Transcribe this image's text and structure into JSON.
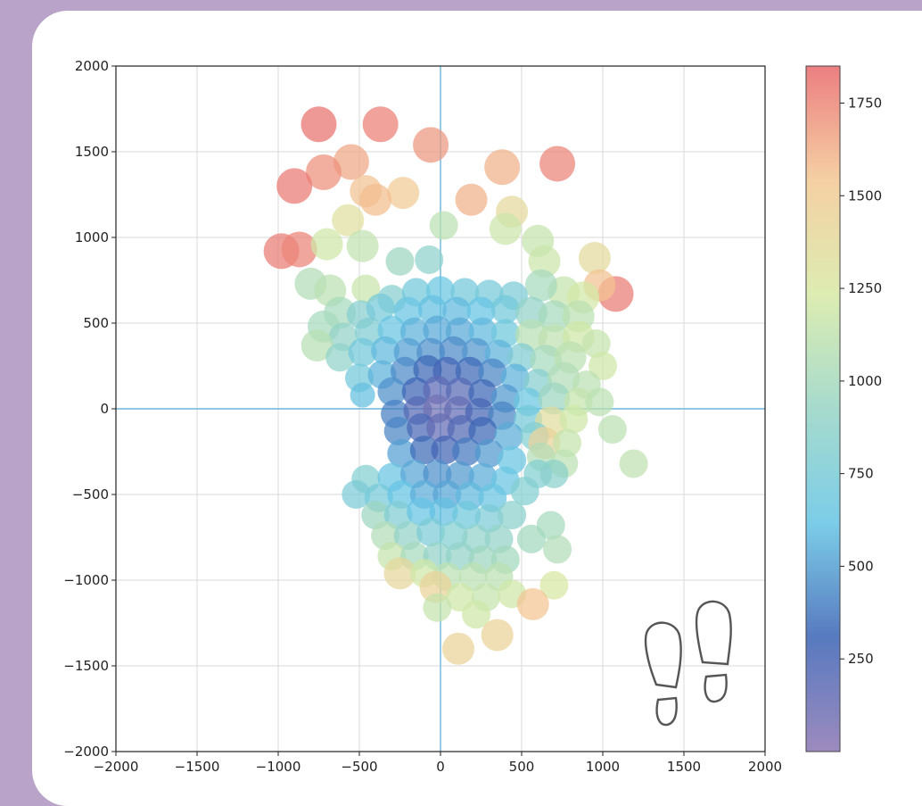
{
  "chart_data": {
    "type": "scatter",
    "title": "",
    "xlabel": "",
    "ylabel": "",
    "xlim": [
      -2000,
      2000
    ],
    "ylim": [
      -2000,
      2000
    ],
    "xticks": [
      -2000,
      -1500,
      -1000,
      -500,
      0,
      500,
      1000,
      1500,
      2000
    ],
    "yticks": [
      -2000,
      -1500,
      -1000,
      -500,
      0,
      500,
      1000,
      1500,
      2000
    ],
    "xtick_labels": [
      "−2000",
      "−1500",
      "−1000",
      "−500",
      "0",
      "500",
      "1000",
      "1500",
      "2000"
    ],
    "ytick_labels": [
      "−2000",
      "−1500",
      "−1000",
      "−500",
      "0",
      "500",
      "1000",
      "1500",
      "2000"
    ],
    "grid": true,
    "reference_lines": {
      "x": 0,
      "y": 0,
      "color": "#6bb6dc"
    },
    "colorbar": {
      "range": [
        0,
        1850
      ],
      "ticks": [
        250,
        500,
        750,
        1000,
        1250,
        1500,
        1750
      ],
      "tick_labels": [
        "250",
        "500",
        "750",
        "1000",
        "1250",
        "1500",
        "1750"
      ],
      "colormap": "Spectral_r",
      "colors": [
        "#8b76b3",
        "#3a62b4",
        "#64c4e4",
        "#97d4c4",
        "#d6e9a4",
        "#f3c893",
        "#e8686b"
      ]
    },
    "points": [
      {
        "x": -750,
        "y": 1660,
        "v": 1820,
        "size": 1
      },
      {
        "x": -370,
        "y": 1660,
        "v": 1780,
        "size": 1
      },
      {
        "x": -60,
        "y": 1540,
        "v": 1700,
        "size": 1
      },
      {
        "x": 720,
        "y": 1430,
        "v": 1760,
        "size": 1
      },
      {
        "x": 380,
        "y": 1410,
        "v": 1620,
        "size": 1
      },
      {
        "x": -550,
        "y": 1440,
        "v": 1650,
        "size": 1
      },
      {
        "x": -720,
        "y": 1380,
        "v": 1720,
        "size": 1
      },
      {
        "x": -900,
        "y": 1300,
        "v": 1800,
        "size": 1
      },
      {
        "x": -460,
        "y": 1270,
        "v": 1560,
        "size": 0.9
      },
      {
        "x": -230,
        "y": 1260,
        "v": 1520,
        "size": 0.9
      },
      {
        "x": 190,
        "y": 1220,
        "v": 1620,
        "size": 0.9
      },
      {
        "x": -400,
        "y": 1220,
        "v": 1580,
        "size": 0.9
      },
      {
        "x": 440,
        "y": 1150,
        "v": 1380,
        "size": 0.9
      },
      {
        "x": -570,
        "y": 1100,
        "v": 1330,
        "size": 0.9
      },
      {
        "x": 20,
        "y": 1070,
        "v": 1100,
        "size": 0.8
      },
      {
        "x": 400,
        "y": 1050,
        "v": 1180,
        "size": 0.9
      },
      {
        "x": -980,
        "y": 920,
        "v": 1790,
        "size": 1
      },
      {
        "x": -870,
        "y": 930,
        "v": 1760,
        "size": 1
      },
      {
        "x": -700,
        "y": 960,
        "v": 1200,
        "size": 0.9
      },
      {
        "x": -480,
        "y": 950,
        "v": 1130,
        "size": 0.9
      },
      {
        "x": -250,
        "y": 860,
        "v": 960,
        "size": 0.8
      },
      {
        "x": -70,
        "y": 870,
        "v": 870,
        "size": 0.8
      },
      {
        "x": 600,
        "y": 980,
        "v": 1150,
        "size": 0.9
      },
      {
        "x": 640,
        "y": 860,
        "v": 1180,
        "size": 0.9
      },
      {
        "x": 950,
        "y": 880,
        "v": 1370,
        "size": 0.9
      },
      {
        "x": 1080,
        "y": 670,
        "v": 1790,
        "size": 1
      },
      {
        "x": 980,
        "y": 720,
        "v": 1560,
        "size": 0.9
      },
      {
        "x": 760,
        "y": 680,
        "v": 1150,
        "size": 0.9
      },
      {
        "x": 880,
        "y": 650,
        "v": 1220,
        "size": 0.9
      },
      {
        "x": 620,
        "y": 720,
        "v": 1000,
        "size": 0.9
      },
      {
        "x": -800,
        "y": 730,
        "v": 1050,
        "size": 0.9
      },
      {
        "x": -680,
        "y": 690,
        "v": 1100,
        "size": 0.9
      },
      {
        "x": -460,
        "y": 700,
        "v": 1160,
        "size": 0.8
      },
      {
        "x": -300,
        "y": 640,
        "v": 830,
        "size": 0.8
      },
      {
        "x": -150,
        "y": 680,
        "v": 700,
        "size": 0.8
      },
      {
        "x": 0,
        "y": 690,
        "v": 650,
        "size": 0.8
      },
      {
        "x": 150,
        "y": 680,
        "v": 700,
        "size": 0.8
      },
      {
        "x": 300,
        "y": 670,
        "v": 720,
        "size": 0.8
      },
      {
        "x": 450,
        "y": 660,
        "v": 760,
        "size": 0.8
      },
      {
        "x": -620,
        "y": 560,
        "v": 1000,
        "size": 0.9
      },
      {
        "x": -490,
        "y": 550,
        "v": 820,
        "size": 0.8
      },
      {
        "x": -370,
        "y": 590,
        "v": 720,
        "size": 0.8
      },
      {
        "x": -200,
        "y": 570,
        "v": 640,
        "size": 0.8
      },
      {
        "x": -50,
        "y": 580,
        "v": 600,
        "size": 0.8
      },
      {
        "x": 100,
        "y": 570,
        "v": 580,
        "size": 0.8
      },
      {
        "x": 250,
        "y": 570,
        "v": 620,
        "size": 0.8
      },
      {
        "x": 400,
        "y": 580,
        "v": 700,
        "size": 0.8
      },
      {
        "x": 560,
        "y": 560,
        "v": 900,
        "size": 0.9
      },
      {
        "x": 700,
        "y": 540,
        "v": 1000,
        "size": 0.9
      },
      {
        "x": 850,
        "y": 540,
        "v": 1100,
        "size": 0.9
      },
      {
        "x": -720,
        "y": 480,
        "v": 1000,
        "size": 0.9
      },
      {
        "x": -600,
        "y": 420,
        "v": 900,
        "size": 0.8
      },
      {
        "x": -440,
        "y": 450,
        "v": 780,
        "size": 0.8
      },
      {
        "x": -300,
        "y": 460,
        "v": 640,
        "size": 0.8
      },
      {
        "x": -160,
        "y": 450,
        "v": 560,
        "size": 0.8
      },
      {
        "x": -20,
        "y": 460,
        "v": 530,
        "size": 0.8
      },
      {
        "x": 120,
        "y": 450,
        "v": 530,
        "size": 0.8
      },
      {
        "x": 260,
        "y": 450,
        "v": 580,
        "size": 0.8
      },
      {
        "x": 400,
        "y": 440,
        "v": 680,
        "size": 0.8
      },
      {
        "x": 560,
        "y": 430,
        "v": 1080,
        "size": 0.9
      },
      {
        "x": 700,
        "y": 400,
        "v": 1120,
        "size": 0.9
      },
      {
        "x": 850,
        "y": 420,
        "v": 1200,
        "size": 0.9
      },
      {
        "x": 960,
        "y": 380,
        "v": 1150,
        "size": 0.8
      },
      {
        "x": -760,
        "y": 370,
        "v": 1080,
        "size": 0.9
      },
      {
        "x": -620,
        "y": 300,
        "v": 880,
        "size": 0.8
      },
      {
        "x": -480,
        "y": 330,
        "v": 700,
        "size": 0.8
      },
      {
        "x": -340,
        "y": 340,
        "v": 580,
        "size": 0.8
      },
      {
        "x": -200,
        "y": 330,
        "v": 500,
        "size": 0.8
      },
      {
        "x": -60,
        "y": 330,
        "v": 450,
        "size": 0.8
      },
      {
        "x": 80,
        "y": 340,
        "v": 430,
        "size": 0.8
      },
      {
        "x": 220,
        "y": 330,
        "v": 470,
        "size": 0.8
      },
      {
        "x": 360,
        "y": 320,
        "v": 560,
        "size": 0.8
      },
      {
        "x": 500,
        "y": 300,
        "v": 780,
        "size": 0.8
      },
      {
        "x": 650,
        "y": 280,
        "v": 1000,
        "size": 0.9
      },
      {
        "x": 800,
        "y": 300,
        "v": 1100,
        "size": 0.9
      },
      {
        "x": 1000,
        "y": 250,
        "v": 1200,
        "size": 0.8
      },
      {
        "x": -500,
        "y": 180,
        "v": 700,
        "size": 0.8
      },
      {
        "x": -360,
        "y": 200,
        "v": 560,
        "size": 0.8
      },
      {
        "x": -220,
        "y": 220,
        "v": 430,
        "size": 0.8
      },
      {
        "x": -80,
        "y": 230,
        "v": 320,
        "size": 0.8
      },
      {
        "x": 40,
        "y": 220,
        "v": 280,
        "size": 0.8
      },
      {
        "x": 180,
        "y": 220,
        "v": 320,
        "size": 0.8
      },
      {
        "x": 320,
        "y": 210,
        "v": 420,
        "size": 0.8
      },
      {
        "x": 460,
        "y": 180,
        "v": 560,
        "size": 0.8
      },
      {
        "x": 600,
        "y": 150,
        "v": 820,
        "size": 0.8
      },
      {
        "x": 760,
        "y": 180,
        "v": 1050,
        "size": 0.9
      },
      {
        "x": 900,
        "y": 140,
        "v": 1100,
        "size": 0.8
      },
      {
        "x": -480,
        "y": 80,
        "v": 600,
        "size": 0.7
      },
      {
        "x": -300,
        "y": 100,
        "v": 450,
        "size": 0.8
      },
      {
        "x": -150,
        "y": 100,
        "v": 300,
        "size": 0.8
      },
      {
        "x": -20,
        "y": 110,
        "v": 180,
        "size": 0.8
      },
      {
        "x": 120,
        "y": 100,
        "v": 200,
        "size": 0.8
      },
      {
        "x": 260,
        "y": 90,
        "v": 320,
        "size": 0.8
      },
      {
        "x": 400,
        "y": 60,
        "v": 480,
        "size": 0.8
      },
      {
        "x": 540,
        "y": 40,
        "v": 650,
        "size": 0.8
      },
      {
        "x": 700,
        "y": 60,
        "v": 950,
        "size": 0.9
      },
      {
        "x": 850,
        "y": 40,
        "v": 1150,
        "size": 0.8
      },
      {
        "x": 980,
        "y": 40,
        "v": 1100,
        "size": 0.8
      },
      {
        "x": -280,
        "y": -30,
        "v": 400,
        "size": 0.8
      },
      {
        "x": -140,
        "y": -10,
        "v": 200,
        "size": 0.8
      },
      {
        "x": -20,
        "y": 0,
        "v": 100,
        "size": 0.8
      },
      {
        "x": 110,
        "y": -10,
        "v": 150,
        "size": 0.8
      },
      {
        "x": 240,
        "y": -20,
        "v": 260,
        "size": 0.8
      },
      {
        "x": 380,
        "y": -40,
        "v": 420,
        "size": 0.8
      },
      {
        "x": 540,
        "y": -60,
        "v": 720,
        "size": 0.8
      },
      {
        "x": 680,
        "y": -80,
        "v": 1350,
        "size": 0.9
      },
      {
        "x": 820,
        "y": -60,
        "v": 1200,
        "size": 0.8
      },
      {
        "x": -260,
        "y": -130,
        "v": 420,
        "size": 0.8
      },
      {
        "x": -120,
        "y": -110,
        "v": 250,
        "size": 0.8
      },
      {
        "x": 0,
        "y": -110,
        "v": 150,
        "size": 0.8
      },
      {
        "x": 130,
        "y": -120,
        "v": 220,
        "size": 0.8
      },
      {
        "x": 260,
        "y": -130,
        "v": 320,
        "size": 0.8
      },
      {
        "x": 420,
        "y": -160,
        "v": 540,
        "size": 0.8
      },
      {
        "x": 580,
        "y": -160,
        "v": 800,
        "size": 0.8
      },
      {
        "x": 640,
        "y": -200,
        "v": 1450,
        "size": 0.9
      },
      {
        "x": 780,
        "y": -200,
        "v": 1150,
        "size": 0.8
      },
      {
        "x": 1060,
        "y": -120,
        "v": 1100,
        "size": 0.8
      },
      {
        "x": -240,
        "y": -260,
        "v": 500,
        "size": 0.8
      },
      {
        "x": -100,
        "y": -240,
        "v": 330,
        "size": 0.8
      },
      {
        "x": 30,
        "y": -240,
        "v": 280,
        "size": 0.8
      },
      {
        "x": 160,
        "y": -250,
        "v": 380,
        "size": 0.8
      },
      {
        "x": 300,
        "y": -260,
        "v": 480,
        "size": 0.8
      },
      {
        "x": 440,
        "y": -300,
        "v": 640,
        "size": 0.8
      },
      {
        "x": 620,
        "y": -280,
        "v": 1050,
        "size": 0.8
      },
      {
        "x": 760,
        "y": -320,
        "v": 1100,
        "size": 0.8
      },
      {
        "x": 1190,
        "y": -320,
        "v": 1120,
        "size": 0.8
      },
      {
        "x": -460,
        "y": -410,
        "v": 800,
        "size": 0.8
      },
      {
        "x": -300,
        "y": -400,
        "v": 640,
        "size": 0.8
      },
      {
        "x": -160,
        "y": -380,
        "v": 520,
        "size": 0.8
      },
      {
        "x": -20,
        "y": -380,
        "v": 450,
        "size": 0.8
      },
      {
        "x": 120,
        "y": -390,
        "v": 480,
        "size": 0.8
      },
      {
        "x": 260,
        "y": -400,
        "v": 540,
        "size": 0.8
      },
      {
        "x": 400,
        "y": -420,
        "v": 640,
        "size": 0.8
      },
      {
        "x": 600,
        "y": -380,
        "v": 800,
        "size": 0.8
      },
      {
        "x": 700,
        "y": -380,
        "v": 850,
        "size": 0.8
      },
      {
        "x": -520,
        "y": -500,
        "v": 760,
        "size": 0.8
      },
      {
        "x": -380,
        "y": -520,
        "v": 720,
        "size": 0.8
      },
      {
        "x": -240,
        "y": -500,
        "v": 620,
        "size": 0.8
      },
      {
        "x": -100,
        "y": -500,
        "v": 540,
        "size": 0.8
      },
      {
        "x": 40,
        "y": -500,
        "v": 520,
        "size": 0.8
      },
      {
        "x": 180,
        "y": -510,
        "v": 580,
        "size": 0.8
      },
      {
        "x": 320,
        "y": -520,
        "v": 640,
        "size": 0.8
      },
      {
        "x": 520,
        "y": -480,
        "v": 800,
        "size": 0.8
      },
      {
        "x": -400,
        "y": -620,
        "v": 950,
        "size": 0.8
      },
      {
        "x": -260,
        "y": -620,
        "v": 780,
        "size": 0.8
      },
      {
        "x": -120,
        "y": -600,
        "v": 620,
        "size": 0.8
      },
      {
        "x": 20,
        "y": -600,
        "v": 600,
        "size": 0.8
      },
      {
        "x": 160,
        "y": -620,
        "v": 680,
        "size": 0.8
      },
      {
        "x": 300,
        "y": -640,
        "v": 760,
        "size": 0.8
      },
      {
        "x": 440,
        "y": -620,
        "v": 850,
        "size": 0.8
      },
      {
        "x": 680,
        "y": -680,
        "v": 1000,
        "size": 0.8
      },
      {
        "x": -340,
        "y": -740,
        "v": 1050,
        "size": 0.8
      },
      {
        "x": -200,
        "y": -740,
        "v": 900,
        "size": 0.8
      },
      {
        "x": -60,
        "y": -720,
        "v": 760,
        "size": 0.8
      },
      {
        "x": 80,
        "y": -740,
        "v": 800,
        "size": 0.8
      },
      {
        "x": 220,
        "y": -760,
        "v": 880,
        "size": 0.8
      },
      {
        "x": 360,
        "y": -760,
        "v": 900,
        "size": 0.8
      },
      {
        "x": 560,
        "y": -760,
        "v": 980,
        "size": 0.8
      },
      {
        "x": 720,
        "y": -820,
        "v": 1050,
        "size": 0.8
      },
      {
        "x": -300,
        "y": -860,
        "v": 1150,
        "size": 0.8
      },
      {
        "x": -160,
        "y": -860,
        "v": 1000,
        "size": 0.8
      },
      {
        "x": -20,
        "y": -860,
        "v": 900,
        "size": 0.8
      },
      {
        "x": 120,
        "y": -860,
        "v": 900,
        "size": 0.8
      },
      {
        "x": 260,
        "y": -880,
        "v": 960,
        "size": 0.8
      },
      {
        "x": 400,
        "y": -880,
        "v": 980,
        "size": 0.8
      },
      {
        "x": -250,
        "y": -960,
        "v": 1400,
        "size": 0.9
      },
      {
        "x": -100,
        "y": -960,
        "v": 1200,
        "size": 0.8
      },
      {
        "x": 40,
        "y": -980,
        "v": 1100,
        "size": 0.8
      },
      {
        "x": 200,
        "y": -980,
        "v": 1100,
        "size": 0.8
      },
      {
        "x": 360,
        "y": -980,
        "v": 1100,
        "size": 0.8
      },
      {
        "x": 700,
        "y": -1030,
        "v": 1250,
        "size": 0.8
      },
      {
        "x": -30,
        "y": -1040,
        "v": 1450,
        "size": 0.9
      },
      {
        "x": 120,
        "y": -1100,
        "v": 1200,
        "size": 0.8
      },
      {
        "x": 280,
        "y": -1100,
        "v": 1150,
        "size": 0.8
      },
      {
        "x": 440,
        "y": -1080,
        "v": 1200,
        "size": 0.8
      },
      {
        "x": -20,
        "y": -1160,
        "v": 1150,
        "size": 0.8
      },
      {
        "x": 220,
        "y": -1200,
        "v": 1200,
        "size": 0.8
      },
      {
        "x": 570,
        "y": -1140,
        "v": 1550,
        "size": 0.9
      },
      {
        "x": 350,
        "y": -1320,
        "v": 1450,
        "size": 0.9
      },
      {
        "x": 110,
        "y": -1400,
        "v": 1450,
        "size": 0.9
      }
    ]
  },
  "icons": {
    "decoration": "footprints-icon"
  }
}
